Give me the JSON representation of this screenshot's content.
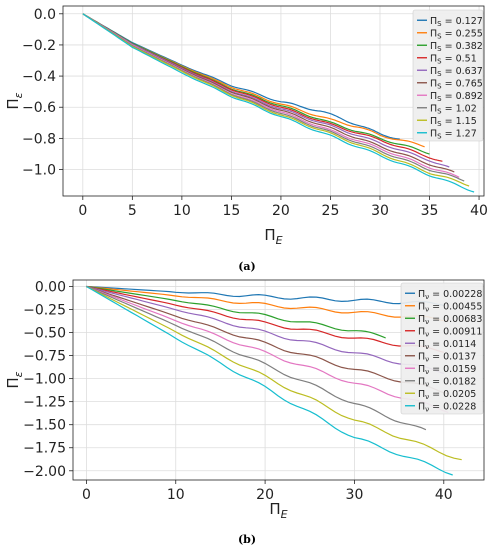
{
  "chart_data": [
    {
      "type": "line",
      "caption": "(a)",
      "xlabel": "Π",
      "xlabel_sub": "E",
      "ylabel": "Π",
      "ylabel_sub": "ε",
      "xlim": [
        -2.0,
        40.5
      ],
      "ylim": [
        -1.17,
        0.05
      ],
      "xticks": [
        0,
        5,
        10,
        15,
        20,
        25,
        30,
        35,
        40
      ],
      "xtick_labels": [
        "0",
        "5",
        "10",
        "15",
        "20",
        "25",
        "30",
        "35",
        "40"
      ],
      "yticks": [
        0.0,
        -0.2,
        -0.4,
        -0.6,
        -0.8,
        -1.0
      ],
      "ytick_labels": [
        "0.0",
        "−0.2",
        "−0.4",
        "−0.6",
        "−0.8",
        "−1.0"
      ],
      "grid": true,
      "legend": "right",
      "legend_prefix": "Π",
      "legend_sub": "S",
      "series": [
        {
          "name": "0.127",
          "color": "#1f77b4",
          "x": [
            0,
            5,
            10,
            15,
            20,
            24,
            26,
            28,
            30,
            32
          ],
          "y": [
            0,
            -0.185,
            -0.33,
            -0.46,
            -0.565,
            -0.625,
            -0.67,
            -0.72,
            -0.77,
            -0.805
          ]
        },
        {
          "name": "0.255",
          "color": "#ff7f0e",
          "x": [
            0,
            5,
            10,
            15,
            20,
            25,
            28,
            30,
            32,
            34.5
          ],
          "y": [
            0,
            -0.19,
            -0.335,
            -0.47,
            -0.58,
            -0.68,
            -0.73,
            -0.78,
            -0.81,
            -0.85
          ]
        },
        {
          "name": "0.382",
          "color": "#2ca02c",
          "x": [
            0,
            5,
            10,
            15,
            20,
            25,
            30,
            35
          ],
          "y": [
            0,
            -0.19,
            -0.34,
            -0.48,
            -0.59,
            -0.7,
            -0.8,
            -0.895
          ]
        },
        {
          "name": "0.51",
          "color": "#d62728",
          "x": [
            0,
            5,
            10,
            15,
            20,
            25,
            30,
            35,
            36.3
          ],
          "y": [
            0,
            -0.195,
            -0.345,
            -0.485,
            -0.6,
            -0.71,
            -0.81,
            -0.92,
            -0.95
          ]
        },
        {
          "name": "0.637",
          "color": "#9467bd",
          "x": [
            0,
            5,
            10,
            15,
            20,
            25,
            30,
            35,
            37
          ],
          "y": [
            0,
            -0.195,
            -0.35,
            -0.495,
            -0.61,
            -0.72,
            -0.83,
            -0.94,
            -0.99
          ]
        },
        {
          "name": "0.765",
          "color": "#8c564b",
          "x": [
            0,
            5,
            10,
            15,
            20,
            25,
            30,
            35,
            37.5
          ],
          "y": [
            0,
            -0.2,
            -0.355,
            -0.5,
            -0.62,
            -0.735,
            -0.85,
            -0.965,
            -1.02
          ]
        },
        {
          "name": "0.892",
          "color": "#e377c2",
          "x": [
            0,
            5,
            10,
            15,
            20,
            25,
            30,
            35,
            38
          ],
          "y": [
            0,
            -0.2,
            -0.36,
            -0.51,
            -0.63,
            -0.75,
            -0.865,
            -0.985,
            -1.05
          ]
        },
        {
          "name": "1.02",
          "color": "#7f7f7f",
          "x": [
            0,
            5,
            10,
            15,
            20,
            25,
            30,
            35,
            38.5
          ],
          "y": [
            0,
            -0.205,
            -0.365,
            -0.515,
            -0.64,
            -0.76,
            -0.88,
            -1.0,
            -1.07
          ]
        },
        {
          "name": "1.15",
          "color": "#bcbd22",
          "x": [
            0,
            5,
            10,
            15,
            20,
            25,
            30,
            35,
            39
          ],
          "y": [
            0,
            -0.21,
            -0.37,
            -0.52,
            -0.65,
            -0.77,
            -0.895,
            -1.02,
            -1.1
          ]
        },
        {
          "name": "1.27",
          "color": "#17becf",
          "x": [
            0,
            5,
            10,
            15,
            20,
            25,
            30,
            35,
            39.5
          ],
          "y": [
            0,
            -0.215,
            -0.38,
            -0.53,
            -0.66,
            -0.785,
            -0.91,
            -1.035,
            -1.14
          ]
        }
      ]
    },
    {
      "type": "line",
      "caption": "(b)",
      "xlabel": "Π",
      "xlabel_sub": "E",
      "ylabel": "Π",
      "ylabel_sub": "ε",
      "xlim": [
        -1.5,
        44.5
      ],
      "ylim": [
        -2.1,
        0.07
      ],
      "xticks": [
        0,
        10,
        20,
        30,
        40
      ],
      "xtick_labels": [
        "0",
        "10",
        "20",
        "30",
        "40"
      ],
      "yticks": [
        0.0,
        -0.25,
        -0.5,
        -0.75,
        -1.0,
        -1.25,
        -1.5,
        -1.75,
        -2.0
      ],
      "ytick_labels": [
        "0.00",
        "−0.25",
        "−0.50",
        "−0.75",
        "−1.00",
        "−1.25",
        "−1.50",
        "−1.75",
        "−2.00"
      ],
      "grid": true,
      "legend": "right",
      "legend_prefix": "Π",
      "legend_sub": "ν",
      "series": [
        {
          "name": "0.00228",
          "color": "#1f77b4",
          "x": [
            0,
            10,
            20,
            30,
            40
          ],
          "y": [
            0,
            -0.06,
            -0.11,
            -0.15,
            -0.19
          ]
        },
        {
          "name": "0.00455",
          "color": "#ff7f0e",
          "x": [
            0,
            10,
            20,
            30,
            40.5
          ],
          "y": [
            0,
            -0.1,
            -0.2,
            -0.28,
            -0.36
          ]
        },
        {
          "name": "0.00683",
          "color": "#2ca02c",
          "x": [
            0,
            10,
            20,
            30,
            33.5
          ],
          "y": [
            0,
            -0.15,
            -0.32,
            -0.48,
            -0.55
          ]
        },
        {
          "name": "0.00911",
          "color": "#d62728",
          "x": [
            0,
            10,
            20,
            30,
            40
          ],
          "y": [
            0,
            -0.2,
            -0.4,
            -0.56,
            -0.7
          ]
        },
        {
          "name": "0.0114",
          "color": "#9467bd",
          "x": [
            0,
            10,
            20,
            30,
            40
          ],
          "y": [
            0,
            -0.25,
            -0.5,
            -0.72,
            -0.93
          ]
        },
        {
          "name": "0.0137",
          "color": "#8c564b",
          "x": [
            0,
            10,
            20,
            30,
            40.5
          ],
          "y": [
            0,
            -0.32,
            -0.62,
            -0.9,
            -1.15
          ]
        },
        {
          "name": "0.0159",
          "color": "#e377c2",
          "x": [
            0,
            10,
            20,
            30,
            40.5
          ],
          "y": [
            0,
            -0.37,
            -0.72,
            -1.05,
            -1.35
          ]
        },
        {
          "name": "0.0182",
          "color": "#7f7f7f",
          "x": [
            0,
            10,
            20,
            30,
            38
          ],
          "y": [
            0,
            -0.42,
            -0.85,
            -1.27,
            -1.57
          ]
        },
        {
          "name": "0.0205",
          "color": "#bcbd22",
          "x": [
            0,
            10,
            20,
            30,
            42
          ],
          "y": [
            0,
            -0.49,
            -0.98,
            -1.45,
            -1.88
          ]
        },
        {
          "name": "0.0228",
          "color": "#17becf",
          "x": [
            0,
            10,
            20,
            30,
            41
          ],
          "y": [
            0,
            -0.56,
            -1.1,
            -1.64,
            -2.03
          ]
        }
      ]
    }
  ]
}
